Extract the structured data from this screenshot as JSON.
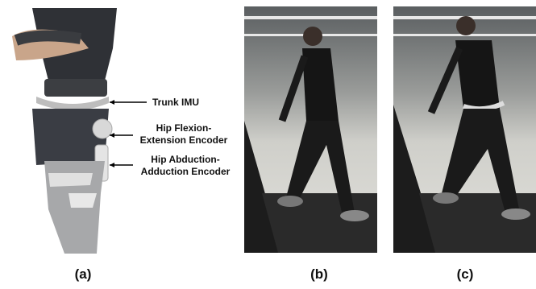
{
  "panels": [
    {
      "caption": "(a)",
      "annotations": [
        {
          "lines": [
            "Trunk IMU"
          ]
        },
        {
          "lines": [
            "Hip Flexion-",
            "Extension Encoder"
          ]
        },
        {
          "lines": [
            "Hip Abduction-",
            "Adduction Encoder"
          ]
        }
      ]
    },
    {
      "caption": "(b)"
    },
    {
      "caption": "(c)"
    }
  ]
}
